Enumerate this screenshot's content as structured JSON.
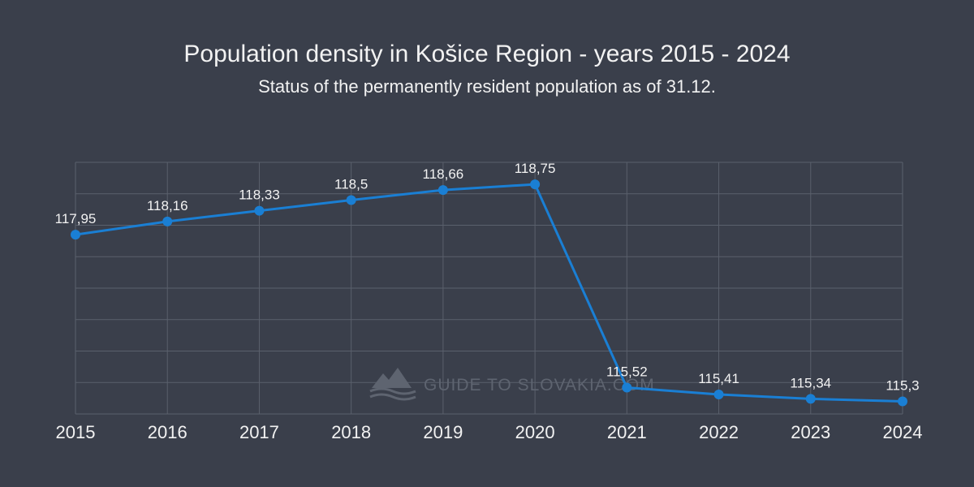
{
  "chart_data": {
    "type": "line",
    "title": "Population density in Košice Region - years 2015 - 2024",
    "subtitle": "Status of the permanently resident population as of 31.12.",
    "categories": [
      "2015",
      "2016",
      "2017",
      "2018",
      "2019",
      "2020",
      "2021",
      "2022",
      "2023",
      "2024"
    ],
    "series": [
      {
        "values": [
          117.95,
          118.16,
          118.33,
          118.5,
          118.66,
          118.75,
          115.52,
          115.41,
          115.34,
          115.3
        ],
        "labels": [
          "117,95",
          "118,16",
          "118,33",
          "118,5",
          "118,66",
          "118,75",
          "115,52",
          "115,41",
          "115,34",
          "115,3"
        ]
      }
    ],
    "ylim": [
      115.1,
      119.1
    ],
    "grid": true,
    "legend": "none",
    "colors": {
      "line": "#1a7fd4",
      "grid": "#5a606c",
      "background": "#3a3f4b"
    }
  },
  "watermark": {
    "text": "GUIDE TO SLOVAKIA.COM",
    "icon": "mountain-logo-icon"
  }
}
